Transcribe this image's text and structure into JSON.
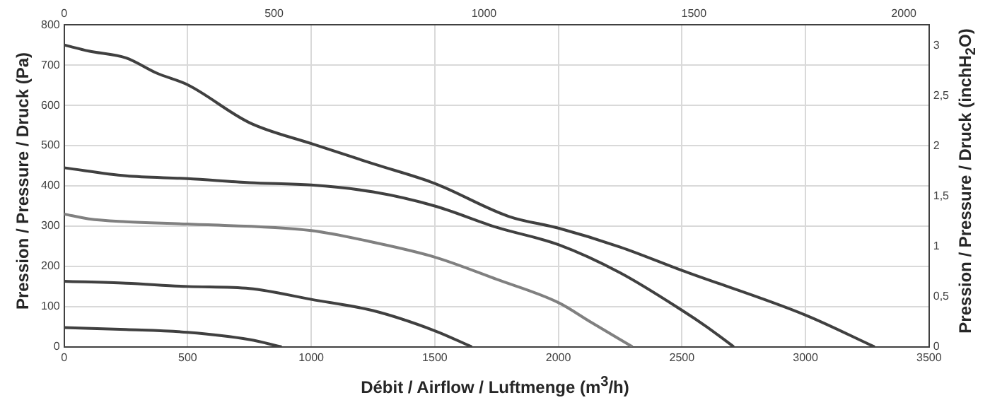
{
  "chart_data": {
    "type": "line",
    "xlabel": "Débit / Airflow / Luftmenge (m$^{3}$/h)",
    "ylabel": "Pression / Pressure / Druck (Pa)",
    "y2label": "Pression / Pressure / Druck (inchH$_{2}$O)",
    "xlim": [
      0,
      3500
    ],
    "xticks": [
      0,
      500,
      1000,
      1500,
      2000,
      2500,
      3000,
      3500
    ],
    "x2lim": [
      0,
      2060
    ],
    "x2ticks": [
      0,
      500,
      1000,
      1500,
      2000
    ],
    "ylim": [
      0,
      800
    ],
    "yticks": [
      0,
      100,
      200,
      300,
      400,
      500,
      600,
      700,
      800
    ],
    "y2lim": [
      0,
      3.21
    ],
    "y2ticks": [
      0,
      {
        "value": 0.5,
        "label": "0,5"
      },
      1,
      {
        "value": 1.5,
        "label": "1,5"
      },
      2,
      {
        "value": 2.5,
        "label": "2,5"
      },
      3
    ],
    "grid": true,
    "marker": "none",
    "series": [
      {
        "color": "#404040",
        "x": [
          0,
          100,
          250,
          375,
          500,
          750,
          1000,
          1250,
          1500,
          1800,
          2000,
          2250,
          2500,
          3000,
          3280
        ],
        "values": [
          750,
          735,
          718,
          680,
          651,
          557,
          505,
          455,
          406,
          324,
          295,
          248,
          190,
          79,
          0
        ]
      },
      {
        "color": "#404040",
        "x": [
          0,
          250,
          500,
          750,
          1000,
          1250,
          1500,
          1750,
          2000,
          2250,
          2500,
          2600,
          2710
        ],
        "values": [
          445,
          425,
          418,
          408,
          402,
          385,
          350,
          297,
          254,
          184,
          91,
          50,
          0
        ]
      },
      {
        "color": "#808080",
        "x": [
          0,
          100,
          250,
          500,
          1000,
          1250,
          1500,
          1750,
          2000,
          2130,
          2300
        ],
        "values": [
          330,
          318,
          311,
          305,
          289,
          260,
          223,
          168,
          110,
          62,
          0
        ]
      },
      {
        "color": "#404040",
        "x": [
          0,
          250,
          500,
          750,
          1000,
          1250,
          1500,
          1650
        ],
        "values": [
          163,
          158,
          150,
          145,
          118,
          90,
          40,
          0
        ]
      },
      {
        "color": "#404040",
        "x": [
          0,
          250,
          500,
          750,
          880
        ],
        "values": [
          48,
          43,
          36,
          18,
          0
        ]
      }
    ]
  }
}
